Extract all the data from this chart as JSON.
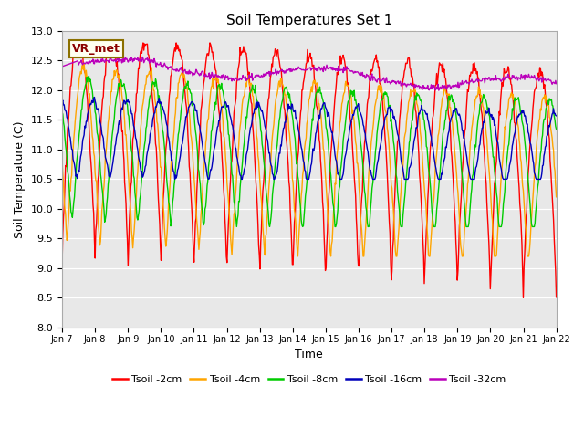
{
  "title": "Soil Temperatures Set 1",
  "xlabel": "Time",
  "ylabel": "Soil Temperature (C)",
  "ylim": [
    8.0,
    13.0
  ],
  "yticks": [
    8.0,
    8.5,
    9.0,
    9.5,
    10.0,
    10.5,
    11.0,
    11.5,
    12.0,
    12.5,
    13.0
  ],
  "xtick_labels": [
    "Jan 7",
    "Jan 8",
    "Jan 9",
    "Jan 10",
    "Jan 11",
    "Jan 12",
    "Jan 13",
    "Jan 14",
    "Jan 15",
    "Jan 16",
    "Jan 17",
    "Jan 18",
    "Jan 19",
    "Jan 20",
    "Jan 21",
    "Jan 22"
  ],
  "annotation_text": "VR_met",
  "annotation_color": "#8B0000",
  "annotation_bg": "#FFFFF0",
  "annotation_border": "#8B7000",
  "lines": {
    "Tsoil -2cm": {
      "color": "#FF0000",
      "lw": 1.0
    },
    "Tsoil -4cm": {
      "color": "#FFA500",
      "lw": 1.0
    },
    "Tsoil -8cm": {
      "color": "#00CC00",
      "lw": 1.0
    },
    "Tsoil -16cm": {
      "color": "#0000BB",
      "lw": 1.0
    },
    "Tsoil -32cm": {
      "color": "#BB00BB",
      "lw": 1.0
    }
  },
  "bg_color": "#E8E8E8",
  "fig_color": "#FFFFFF",
  "n_points": 720
}
